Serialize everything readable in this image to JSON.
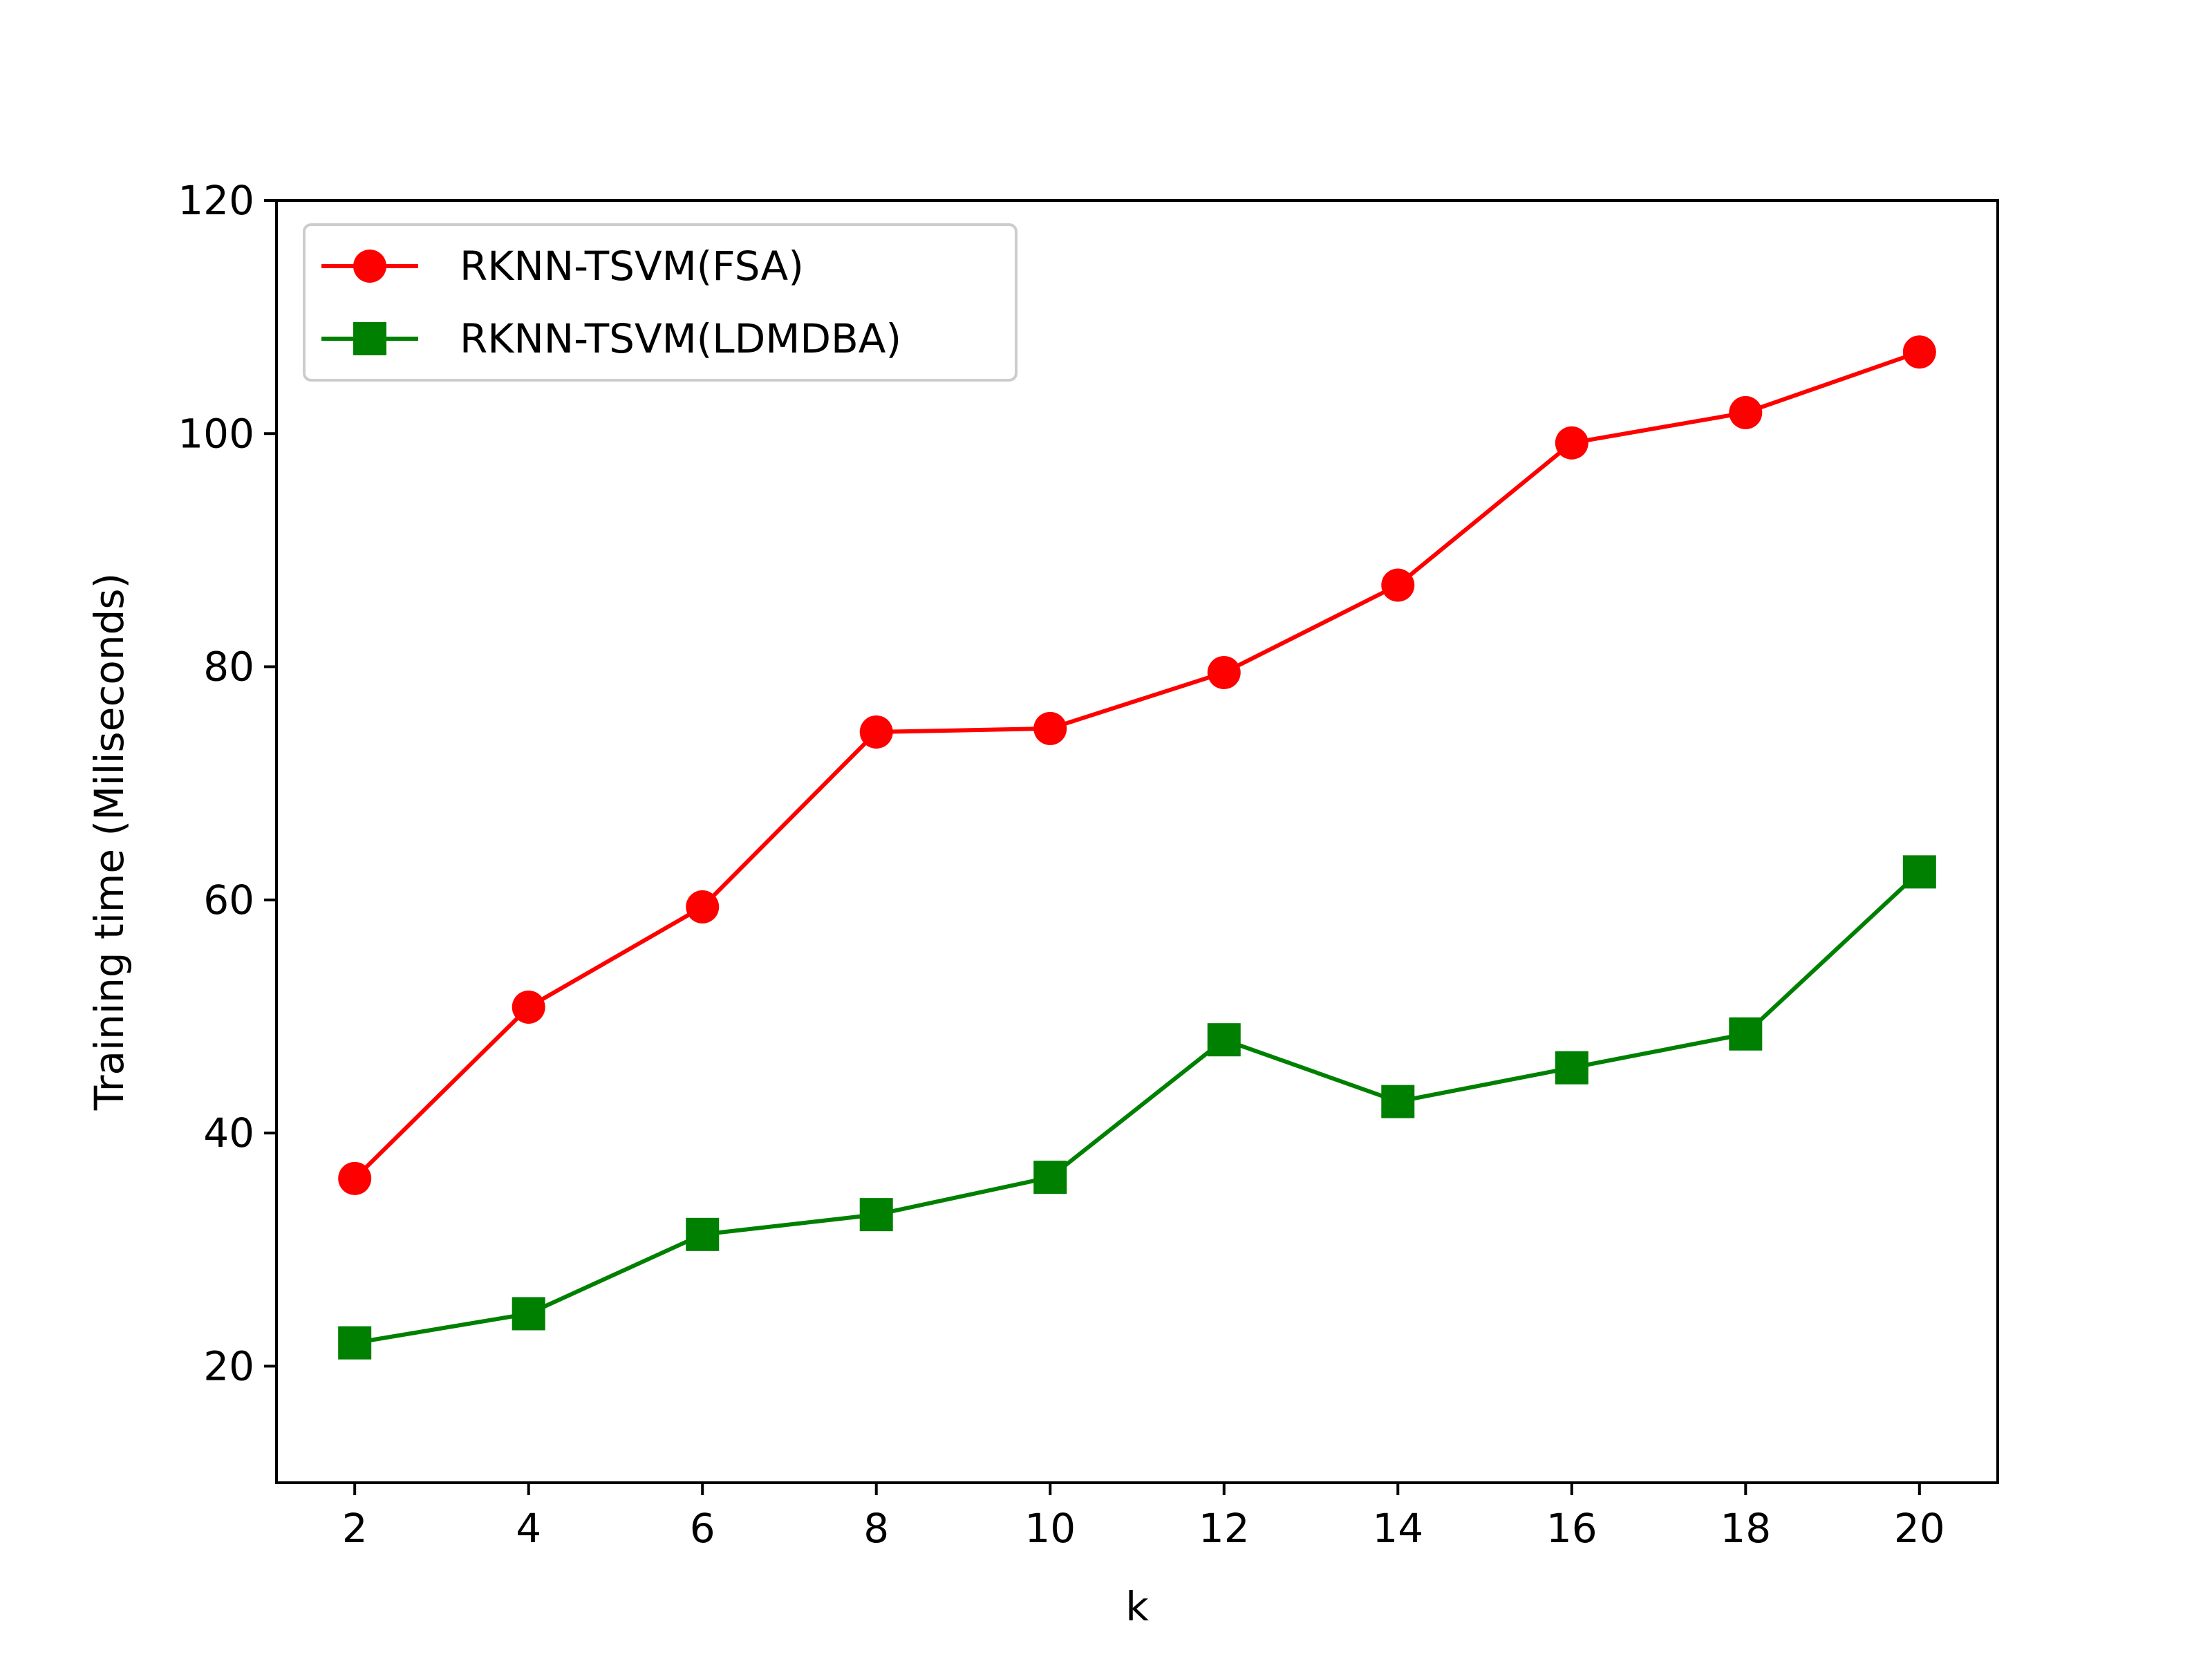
{
  "chart_data": {
    "type": "line",
    "xlabel": "k",
    "ylabel": "Training time (Miliseconds)",
    "x": [
      2,
      4,
      6,
      8,
      10,
      12,
      14,
      16,
      18,
      20
    ],
    "xlim": [
      1.1,
      20.9
    ],
    "ylim": [
      10,
      120
    ],
    "xticks": [
      "2",
      "4",
      "6",
      "8",
      "10",
      "12",
      "14",
      "16",
      "18",
      "20"
    ],
    "yticks": [
      "20",
      "40",
      "60",
      "80",
      "100",
      "120"
    ],
    "grid": false,
    "legend_position": "top-left",
    "series": [
      {
        "name": "RKNN-TSVM(FSA)",
        "color": "#ff0000",
        "marker": "circle",
        "values": [
          36.1,
          50.8,
          59.4,
          74.4,
          74.7,
          79.5,
          87.0,
          99.2,
          101.8,
          107.0
        ]
      },
      {
        "name": "RKNN-TSVM(LDMDBA)",
        "color": "#008000",
        "marker": "square",
        "values": [
          22.0,
          24.5,
          31.3,
          33.0,
          36.2,
          48.0,
          42.7,
          45.6,
          48.5,
          62.4
        ]
      }
    ]
  }
}
